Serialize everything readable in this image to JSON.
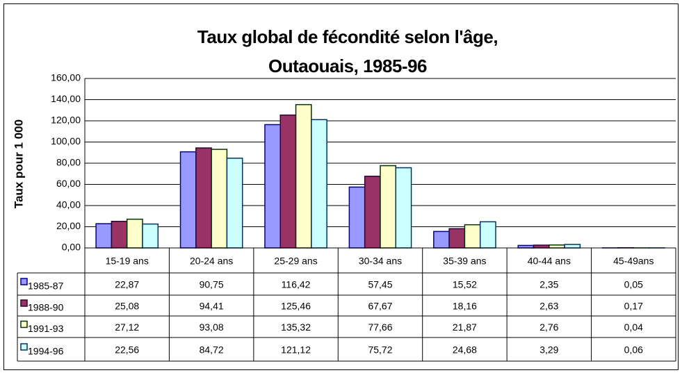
{
  "chart_data": {
    "type": "bar",
    "title": "Taux global de fécondité selon l'âge,",
    "subtitle": "Outaouais, 1985-96",
    "y_label": "Taux pour 1 000",
    "categories": [
      "15-19 ans",
      "20-24 ans",
      "25-29 ans",
      "30-34 ans",
      "35-39 ans",
      "40-44 ans",
      "45-49ans"
    ],
    "series": [
      {
        "name": "1985-87",
        "color": "#9999ff",
        "edgecolor": "#000080",
        "values": [
          22.87,
          90.75,
          116.42,
          57.45,
          15.52,
          2.35,
          0.05
        ],
        "value_labels": [
          "22,87",
          "90,75",
          "116,42",
          "57,45",
          "15,52",
          "2,35",
          "0,05"
        ]
      },
      {
        "name": "1988-90",
        "color": "#993366",
        "edgecolor": "#330033",
        "values": [
          25.08,
          94.41,
          125.46,
          67.67,
          18.16,
          2.63,
          0.17
        ],
        "value_labels": [
          "25,08",
          "94,41",
          "125,46",
          "67,67",
          "18,16",
          "2,63",
          "0,17"
        ]
      },
      {
        "name": "1991-93",
        "color": "#ffffcc",
        "edgecolor": "#003300",
        "values": [
          27.12,
          93.08,
          135.32,
          77.66,
          21.87,
          2.76,
          0.04
        ],
        "value_labels": [
          "27,12",
          "93,08",
          "135,32",
          "77,66",
          "21,87",
          "2,76",
          "0,04"
        ]
      },
      {
        "name": "1994-96",
        "color": "#ccffff",
        "edgecolor": "#003366",
        "values": [
          22.56,
          84.72,
          121.12,
          75.72,
          24.68,
          3.29,
          0.06
        ],
        "value_labels": [
          "22,56",
          "84,72",
          "121,12",
          "75,72",
          "24,68",
          "3,29",
          "0,06"
        ]
      }
    ],
    "ylim": [
      0,
      160
    ],
    "yticks": [
      {
        "value": 0,
        "label": "0,00"
      },
      {
        "value": 20,
        "label": "20,00"
      },
      {
        "value": 40,
        "label": "40,00"
      },
      {
        "value": 60,
        "label": "60,00"
      },
      {
        "value": 80,
        "label": "80,00"
      },
      {
        "value": 100,
        "label": "100,00"
      },
      {
        "value": 120,
        "label": "120,00"
      },
      {
        "value": 140,
        "label": "140,00"
      },
      {
        "value": 160,
        "label": "160,00"
      }
    ],
    "grid": true
  }
}
